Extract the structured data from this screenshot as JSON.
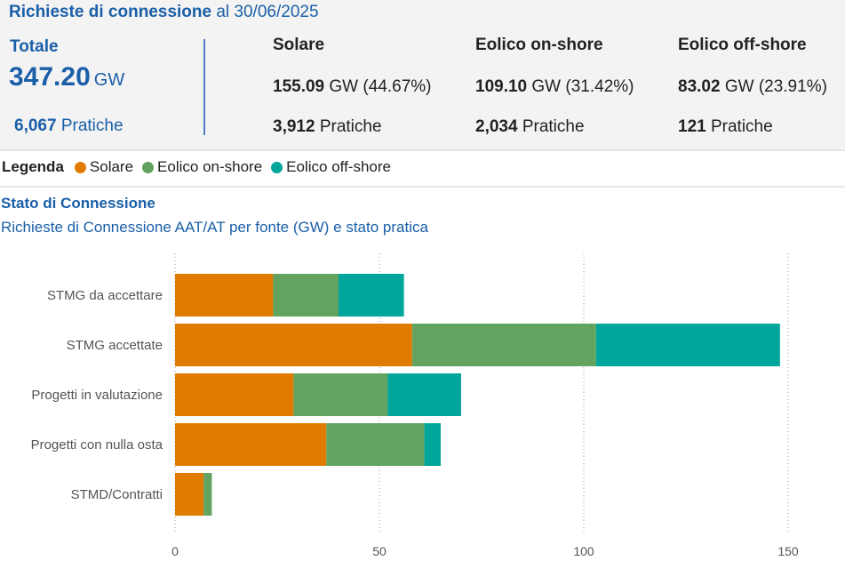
{
  "header": {
    "title_bold": "Richieste di connessione",
    "title_rest": " al 30/06/2025"
  },
  "total": {
    "label": "Totale",
    "value": "347.20",
    "unit": "GW",
    "pratiche_count": "6,067",
    "pratiche_label": "Pratiche"
  },
  "sources": [
    {
      "name": "Solare",
      "gw_value": "155.09",
      "gw_rest": " GW (44.67%)",
      "pratiche_count": "3,912",
      "pratiche_label": " Pratiche"
    },
    {
      "name": "Eolico on-shore",
      "gw_value": "109.10",
      "gw_rest": " GW (31.42%)",
      "pratiche_count": "2,034",
      "pratiche_label": " Pratiche"
    },
    {
      "name": "Eolico off-shore",
      "gw_value": "83.02",
      "gw_rest": " GW (23.91%)",
      "pratiche_count": "121",
      "pratiche_label": " Pratiche"
    }
  ],
  "legend": {
    "title": "Legenda",
    "items": [
      {
        "label": "Solare",
        "color": "#e07b00"
      },
      {
        "label": "Eolico on-shore",
        "color": "#62a35f"
      },
      {
        "label": "Eolico off-shore",
        "color": "#00a59b"
      }
    ]
  },
  "section": {
    "title": "Stato di Connessione",
    "subtitle": "Richieste di Connessione AAT/AT per fonte (GW) e stato pratica"
  },
  "chart_data": {
    "type": "bar",
    "orientation": "horizontal",
    "stacked": true,
    "title": "",
    "xlabel": "",
    "ylabel": "",
    "categories": [
      "STMG da accettare",
      "STMG accettate",
      "Progetti in valutazione",
      "Progetti con nulla osta",
      "STMD/Contratti"
    ],
    "series": [
      {
        "name": "Solare",
        "color": "#e07b00",
        "values": [
          24,
          58,
          29,
          37,
          7
        ]
      },
      {
        "name": "Eolico on-shore",
        "color": "#62a35f",
        "values": [
          16,
          45,
          23,
          24,
          2
        ]
      },
      {
        "name": "Eolico off-shore",
        "color": "#00a59b",
        "values": [
          16,
          45,
          18,
          4,
          0
        ]
      }
    ],
    "xlim": [
      0,
      160
    ],
    "xticks": [
      0,
      50,
      100,
      150
    ],
    "grid": "vertical-dotted",
    "legend_placement": "top"
  }
}
